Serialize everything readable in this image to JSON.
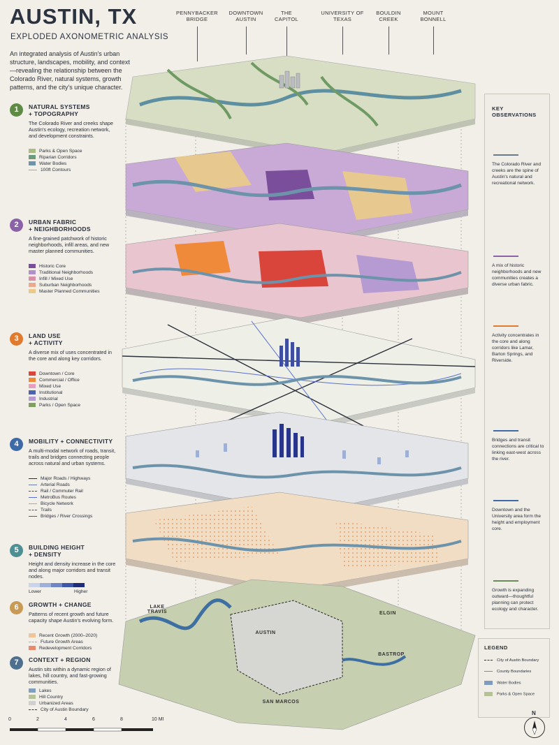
{
  "title": "AUSTIN, TX",
  "subtitle": "EXPLODED AXONOMETRIC ANALYSIS",
  "intro": "An integrated analysis of Austin's urban structure, landscapes, mobility, and context—revealing the relationship between the Colorado River, natural systems, growth patterns, and the city's unique character.",
  "callouts": [
    {
      "label": "PENNYBACKER\nBRIDGE"
    },
    {
      "label": "DOWNTOWN\nAUSTIN"
    },
    {
      "label": "THE\nCAPITOL"
    },
    {
      "label": "UNIVERSITY OF\nTEXAS"
    },
    {
      "label": "BOULDIN\nCREEK"
    },
    {
      "label": "MOUNT\nBONNELL"
    }
  ],
  "sections": [
    {
      "num": "1",
      "color": "#5f8a45",
      "title": "NATURAL SYSTEMS\n+ TOPOGRAPHY",
      "desc": "The Colorado River and creeks shape Austin's ecology, recreation network, and development constraints.",
      "legend": [
        {
          "label": "Parks & Open Space",
          "color": "#a9bc84",
          "kind": "swatch"
        },
        {
          "label": "Riparian Corridors",
          "color": "#6c9a7a",
          "kind": "swatch"
        },
        {
          "label": "Water Bodies",
          "color": "#6d93aa",
          "kind": "swatch"
        },
        {
          "label": "100ft Contours",
          "color": "#9aa",
          "kind": "line"
        }
      ]
    },
    {
      "num": "2",
      "color": "#8b62a8",
      "title": "URBAN FABRIC\n+ NEIGHBORHOODS",
      "desc": "A fine-grained patchwork of historic neighborhoods, infill areas, and new master planned communities.",
      "legend": [
        {
          "label": "Historic Core",
          "color": "#7a4e9a",
          "kind": "swatch"
        },
        {
          "label": "Traditional Neighborhoods",
          "color": "#b18fcb",
          "kind": "swatch"
        },
        {
          "label": "Infill / Mixed Use",
          "color": "#d98fa6",
          "kind": "swatch"
        },
        {
          "label": "Suburban Neighborhoods",
          "color": "#e8a98f",
          "kind": "swatch"
        },
        {
          "label": "Master Planned Communities",
          "color": "#eac98a",
          "kind": "swatch"
        }
      ]
    },
    {
      "num": "3",
      "color": "#e07a2e",
      "title": "LAND USE\n+ ACTIVITY",
      "desc": "A diverse mix of uses concentrated in the core and along key corridors.",
      "legend": [
        {
          "label": "Downtown / Core",
          "color": "#d9453a",
          "kind": "swatch"
        },
        {
          "label": "Commercial / Office",
          "color": "#ef8a3a",
          "kind": "swatch"
        },
        {
          "label": "Mixed Use",
          "color": "#e79fbe",
          "kind": "swatch"
        },
        {
          "label": "Institutional",
          "color": "#4d63b0",
          "kind": "swatch"
        },
        {
          "label": "Industrial",
          "color": "#b69ad2",
          "kind": "swatch"
        },
        {
          "label": "Parks / Open Space",
          "color": "#7fa060",
          "kind": "swatch"
        }
      ]
    },
    {
      "num": "4",
      "color": "#3f6aa8",
      "title": "MOBILITY + CONNECTIVITY",
      "desc": "A multi-modal network of roads, transit, trails and bridges connecting people across natural and urban systems.",
      "legend": [
        {
          "label": "Major Roads / Highways",
          "color": "#2a2f3a",
          "kind": "line"
        },
        {
          "label": "Arterial Roads",
          "color": "#6a7fb0",
          "kind": "line"
        },
        {
          "label": "Rail / Commuter Rail",
          "color": "#3347a0",
          "kind": "dash"
        },
        {
          "label": "MetroBus Routes",
          "color": "#5a6fd0",
          "kind": "line"
        },
        {
          "label": "Bicycle Network",
          "color": "#7cc0a0",
          "kind": "line"
        },
        {
          "label": "Trails",
          "color": "#555",
          "kind": "dash"
        },
        {
          "label": "Bridges / River Crossings",
          "color": "#3a5ea0",
          "kind": "line"
        }
      ]
    },
    {
      "num": "5",
      "color": "#4d8f93",
      "title": "BUILDING HEIGHT\n+ DENSITY",
      "desc": "Height and density increase in the core and along major corridors and transit nodes.",
      "ramp_low": "Lower",
      "ramp_high": "Higher"
    },
    {
      "num": "6",
      "color": "#c89a55",
      "title": "GROWTH + CHANGE",
      "desc": "Patterns of recent growth and future capacity shape Austin's evolving form.",
      "legend": [
        {
          "label": "Recent Growth (2000–2020)",
          "color": "#eec59a",
          "kind": "swatch"
        },
        {
          "label": "Future Growth Areas",
          "color": "#e59a6a",
          "kind": "dash"
        },
        {
          "label": "Redevelopment Corridors",
          "color": "#e7896a",
          "kind": "swatch"
        }
      ]
    },
    {
      "num": "7",
      "color": "#4f6f8f",
      "title": "CONTEXT + REGION",
      "desc": "Austin sits within a dynamic region of lakes, hill country, and fast-growing communities.",
      "legend": [
        {
          "label": "Lakes",
          "color": "#7fa0bf",
          "kind": "swatch"
        },
        {
          "label": "Hill Country",
          "color": "#b6c298",
          "kind": "swatch"
        },
        {
          "label": "Urbanized Areas",
          "color": "#cfcfcf",
          "kind": "swatch"
        },
        {
          "label": "City of Austin Boundary",
          "color": "#333",
          "kind": "dash"
        }
      ]
    }
  ],
  "observations": {
    "title": "KEY OBSERVATIONS",
    "items": [
      {
        "text": "The Colorado River and creeks are the spine of Austin's natural and recreational network.",
        "icon": "water-waves-icon"
      },
      {
        "text": "A mix of historic neighborhoods and new communities creates a diverse urban fabric.",
        "icon": "building-blocks-icon"
      },
      {
        "text": "Activity concentrates in the core and along corridors like Lamar, Barton Springs, and Riverside.",
        "icon": "bar-chart-icon"
      },
      {
        "text": "Bridges and transit connections are critical to linking east-west across the river.",
        "icon": "bridge-icon"
      },
      {
        "text": "Downtown and the University area form the height and employment core.",
        "icon": "towers-icon"
      },
      {
        "text": "Growth is expanding outward—thoughtful planning can protect ecology and character.",
        "icon": "leaf-icon"
      }
    ]
  },
  "map_labels": {
    "lake_travis": "LAKE\nTRAVIS",
    "austin": "AUSTIN",
    "elgin": "ELGIN",
    "bastrop": "BASTROP",
    "san_marcos": "SAN MARCOS"
  },
  "legend": {
    "title": "LEGEND",
    "items": [
      {
        "label": "City of Austin Boundary",
        "kind": "dash"
      },
      {
        "label": "County Boundaries",
        "kind": "line"
      },
      {
        "label": "Water Bodies",
        "kind": "swatch",
        "color": "#7f9cc0"
      },
      {
        "label": "Parks & Open Space",
        "kind": "swatch",
        "color": "#b5c394"
      }
    ]
  },
  "scale": {
    "ticks": [
      "0",
      "2",
      "4",
      "6",
      "8",
      "10 MI"
    ]
  },
  "compass": {
    "label": "N"
  }
}
